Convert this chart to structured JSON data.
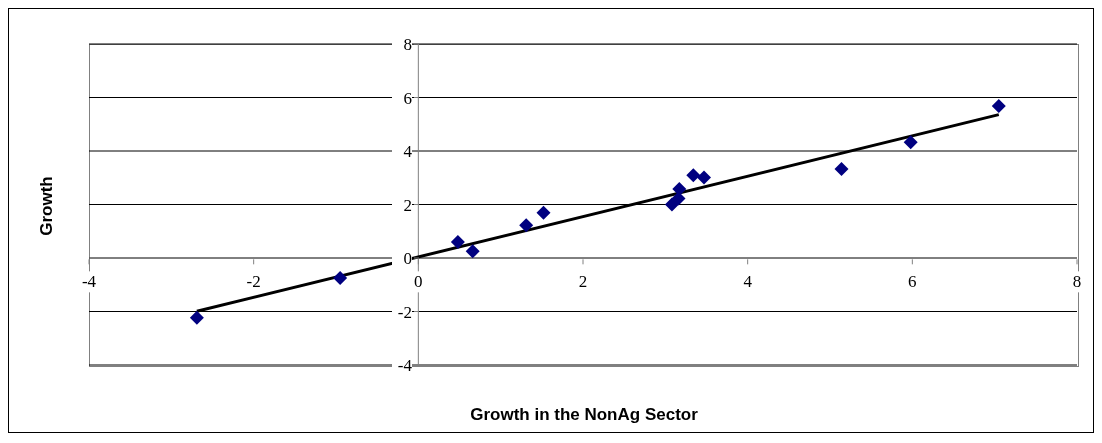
{
  "chart_data": {
    "type": "scatter",
    "xlabel": "Growth in the NonAg Sector",
    "ylabel": "Growth",
    "xlim": [
      -4,
      8
    ],
    "xticks": [
      -4,
      -2,
      0,
      2,
      4,
      6,
      8
    ],
    "ylim": [
      -4,
      8
    ],
    "yticks": [
      -4,
      -2,
      0,
      2,
      4,
      6,
      8
    ],
    "grid": "y",
    "series": [
      {
        "type": "scatter",
        "color": "#000080",
        "marker": "diamond",
        "x": [
          -2.69,
          -0.95,
          0.48,
          0.66,
          1.31,
          1.52,
          3.08,
          3.16,
          3.17,
          3.34,
          3.47,
          5.14,
          5.98,
          7.05
        ],
        "values": [
          -2.23,
          -0.75,
          0.6,
          0.25,
          1.22,
          1.69,
          2.0,
          2.22,
          2.58,
          3.09,
          3.01,
          3.33,
          4.33,
          5.68
        ]
      },
      {
        "type": "line",
        "color": "#000000",
        "x": [
          -2.69,
          7.05
        ],
        "values": [
          -1.99,
          5.36
        ]
      }
    ]
  }
}
